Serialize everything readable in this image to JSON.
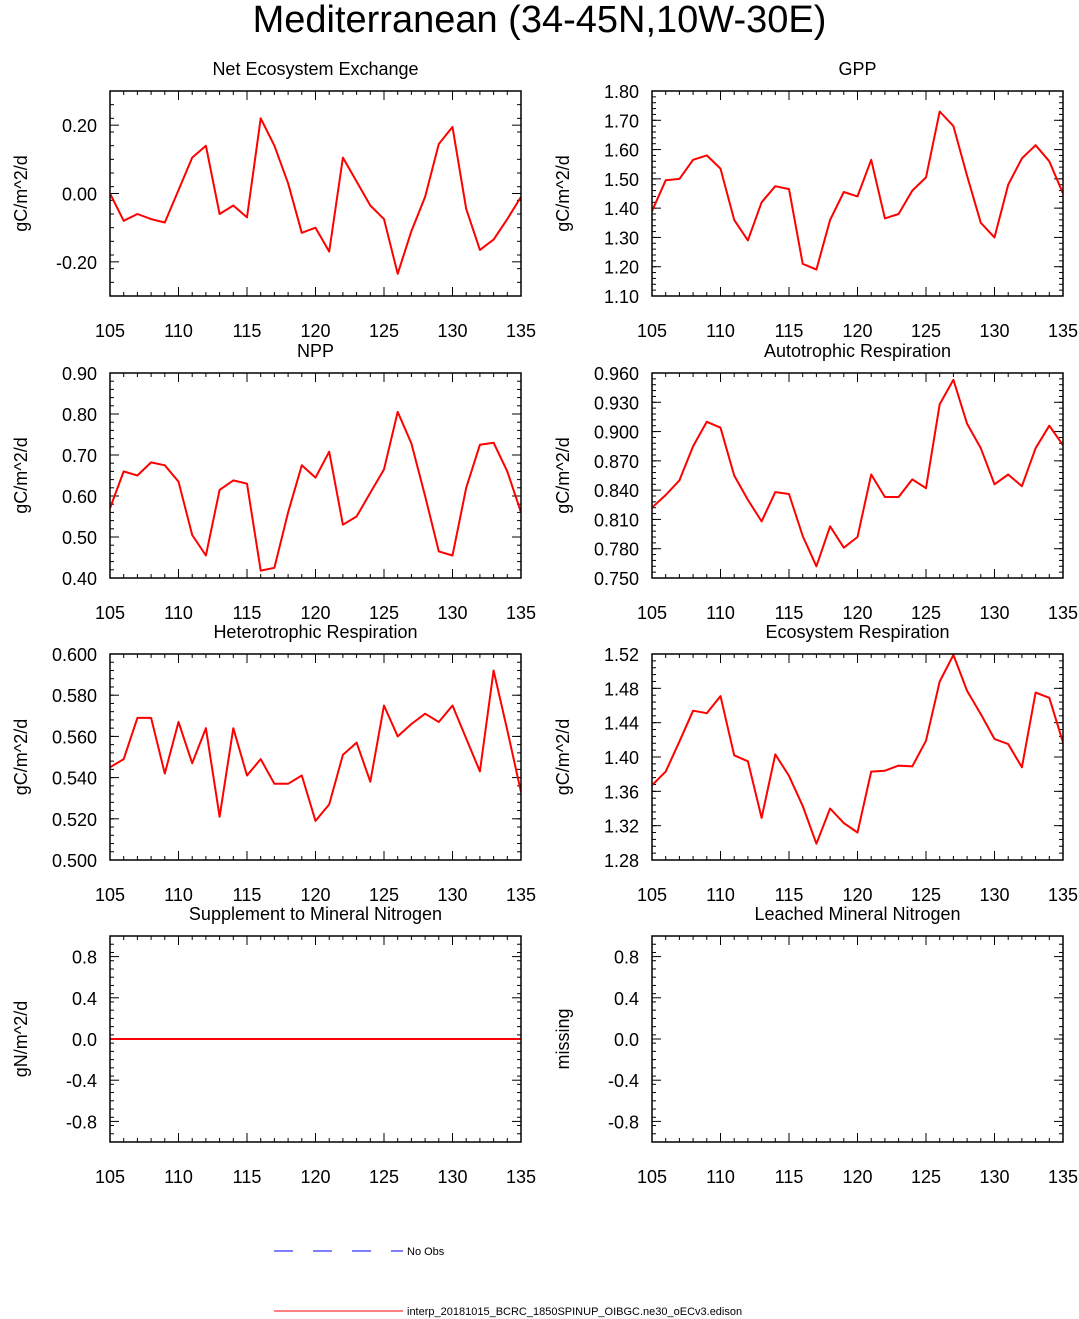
{
  "page_title": "Mediterranean (34-45N,10W-30E)",
  "series_color": "#ff0000",
  "obs_color": "#0000ff",
  "legend": {
    "obs_label": "No Obs",
    "model_label": "interp_20181015_BCRC_1850SPINUP_OIBGC.ne30_oECv3.edison"
  },
  "chart_data": [
    {
      "type": "line",
      "title": "Net Ecosystem Exchange",
      "ylabel": "gC/m^2/d",
      "xlim": [
        105,
        135
      ],
      "ylim": [
        -0.3,
        0.3
      ],
      "xticks": [
        105,
        110,
        115,
        120,
        125,
        130,
        135
      ],
      "yticks": [
        -0.2,
        0.0,
        0.2
      ],
      "ytick_labels": [
        "-0.20",
        "0.00",
        "0.20"
      ],
      "x": [
        105,
        106,
        107,
        108,
        109,
        110,
        111,
        112,
        113,
        114,
        115,
        116,
        117,
        118,
        119,
        120,
        121,
        122,
        123,
        124,
        125,
        126,
        127,
        128,
        129,
        130,
        131,
        132,
        133,
        134,
        135
      ],
      "series": [
        {
          "values": [
            0.0,
            -0.08,
            -0.06,
            -0.075,
            -0.085,
            0.01,
            0.105,
            0.14,
            -0.06,
            -0.035,
            -0.07,
            0.22,
            0.14,
            0.03,
            -0.115,
            -0.1,
            -0.17,
            0.105,
            0.035,
            -0.035,
            -0.075,
            -0.235,
            -0.11,
            -0.01,
            0.145,
            0.195,
            -0.045,
            -0.165,
            -0.135,
            -0.075,
            -0.01
          ]
        }
      ]
    },
    {
      "type": "line",
      "title": "GPP",
      "ylabel": "gC/m^2/d",
      "xlim": [
        105,
        135
      ],
      "ylim": [
        1.1,
        1.8
      ],
      "xticks": [
        105,
        110,
        115,
        120,
        125,
        130,
        135
      ],
      "yticks": [
        1.1,
        1.2,
        1.3,
        1.4,
        1.5,
        1.6,
        1.7,
        1.8
      ],
      "ytick_labels": [
        "1.10",
        "1.20",
        "1.30",
        "1.40",
        "1.50",
        "1.60",
        "1.70",
        "1.80"
      ],
      "x": [
        105,
        106,
        107,
        108,
        109,
        110,
        111,
        112,
        113,
        114,
        115,
        116,
        117,
        118,
        119,
        120,
        121,
        122,
        123,
        124,
        125,
        126,
        127,
        128,
        129,
        130,
        131,
        132,
        133,
        134,
        135
      ],
      "series": [
        {
          "values": [
            1.39,
            1.495,
            1.5,
            1.565,
            1.58,
            1.535,
            1.36,
            1.29,
            1.42,
            1.475,
            1.465,
            1.21,
            1.19,
            1.36,
            1.455,
            1.44,
            1.565,
            1.365,
            1.38,
            1.46,
            1.505,
            1.73,
            1.68,
            1.51,
            1.35,
            1.3,
            1.48,
            1.57,
            1.615,
            1.56,
            1.45
          ]
        }
      ]
    },
    {
      "type": "line",
      "title": "NPP",
      "ylabel": "gC/m^2/d",
      "xlim": [
        105,
        135
      ],
      "ylim": [
        0.4,
        0.9
      ],
      "xticks": [
        105,
        110,
        115,
        120,
        125,
        130,
        135
      ],
      "yticks": [
        0.4,
        0.5,
        0.6,
        0.7,
        0.8,
        0.9
      ],
      "ytick_labels": [
        "0.40",
        "0.50",
        "0.60",
        "0.70",
        "0.80",
        "0.90"
      ],
      "x": [
        105,
        106,
        107,
        108,
        109,
        110,
        111,
        112,
        113,
        114,
        115,
        116,
        117,
        118,
        119,
        120,
        121,
        122,
        123,
        124,
        125,
        126,
        127,
        128,
        129,
        130,
        131,
        132,
        133,
        134,
        135
      ],
      "series": [
        {
          "values": [
            0.57,
            0.66,
            0.65,
            0.682,
            0.675,
            0.635,
            0.505,
            0.455,
            0.615,
            0.638,
            0.63,
            0.418,
            0.425,
            0.56,
            0.675,
            0.645,
            0.708,
            0.53,
            0.55,
            0.608,
            0.665,
            0.805,
            0.728,
            0.6,
            0.465,
            0.455,
            0.62,
            0.725,
            0.73,
            0.66,
            0.56
          ]
        }
      ]
    },
    {
      "type": "line",
      "title": "Autotrophic Respiration",
      "ylabel": "gC/m^2/d",
      "xlim": [
        105,
        135
      ],
      "ylim": [
        0.75,
        0.96
      ],
      "xticks": [
        105,
        110,
        115,
        120,
        125,
        130,
        135
      ],
      "yticks": [
        0.75,
        0.78,
        0.81,
        0.84,
        0.87,
        0.9,
        0.93,
        0.96
      ],
      "ytick_labels": [
        "0.750",
        "0.780",
        "0.810",
        "0.840",
        "0.870",
        "0.900",
        "0.930",
        "0.960"
      ],
      "x": [
        105,
        106,
        107,
        108,
        109,
        110,
        111,
        112,
        113,
        114,
        115,
        116,
        117,
        118,
        119,
        120,
        121,
        122,
        123,
        124,
        125,
        126,
        127,
        128,
        129,
        130,
        131,
        132,
        133,
        134,
        135
      ],
      "series": [
        {
          "values": [
            0.822,
            0.835,
            0.85,
            0.885,
            0.91,
            0.904,
            0.855,
            0.83,
            0.808,
            0.838,
            0.836,
            0.793,
            0.762,
            0.803,
            0.781,
            0.792,
            0.856,
            0.833,
            0.833,
            0.851,
            0.842,
            0.928,
            0.953,
            0.908,
            0.883,
            0.846,
            0.856,
            0.844,
            0.883,
            0.906,
            0.886
          ]
        }
      ]
    },
    {
      "type": "line",
      "title": "Heterotrophic Respiration",
      "ylabel": "gC/m^2/d",
      "xlim": [
        105,
        135
      ],
      "ylim": [
        0.5,
        0.6
      ],
      "xticks": [
        105,
        110,
        115,
        120,
        125,
        130,
        135
      ],
      "yticks": [
        0.5,
        0.52,
        0.54,
        0.56,
        0.58,
        0.6
      ],
      "ytick_labels": [
        "0.500",
        "0.520",
        "0.540",
        "0.560",
        "0.580",
        "0.600"
      ],
      "x": [
        105,
        106,
        107,
        108,
        109,
        110,
        111,
        112,
        113,
        114,
        115,
        116,
        117,
        118,
        119,
        120,
        121,
        122,
        123,
        124,
        125,
        126,
        127,
        128,
        129,
        130,
        131,
        132,
        133,
        134,
        135
      ],
      "series": [
        {
          "values": [
            0.545,
            0.549,
            0.569,
            0.569,
            0.542,
            0.567,
            0.547,
            0.564,
            0.521,
            0.564,
            0.541,
            0.549,
            0.537,
            0.537,
            0.541,
            0.519,
            0.527,
            0.551,
            0.557,
            0.538,
            0.575,
            0.56,
            0.566,
            0.571,
            0.567,
            0.575,
            0.559,
            0.543,
            0.592,
            0.563,
            0.533
          ]
        }
      ]
    },
    {
      "type": "line",
      "title": "Ecosystem Respiration",
      "ylabel": "gC/m^2/d",
      "xlim": [
        105,
        135
      ],
      "ylim": [
        1.28,
        1.52
      ],
      "xticks": [
        105,
        110,
        115,
        120,
        125,
        130,
        135
      ],
      "yticks": [
        1.28,
        1.32,
        1.36,
        1.4,
        1.44,
        1.48,
        1.52
      ],
      "ytick_labels": [
        "1.28",
        "1.32",
        "1.36",
        "1.40",
        "1.44",
        "1.48",
        "1.52"
      ],
      "x": [
        105,
        106,
        107,
        108,
        109,
        110,
        111,
        112,
        113,
        114,
        115,
        116,
        117,
        118,
        119,
        120,
        121,
        122,
        123,
        124,
        125,
        126,
        127,
        128,
        129,
        130,
        131,
        132,
        133,
        134,
        135
      ],
      "series": [
        {
          "values": [
            1.367,
            1.383,
            1.418,
            1.454,
            1.451,
            1.471,
            1.402,
            1.395,
            1.329,
            1.403,
            1.378,
            1.343,
            1.299,
            1.34,
            1.323,
            1.312,
            1.383,
            1.384,
            1.39,
            1.389,
            1.419,
            1.488,
            1.519,
            1.477,
            1.45,
            1.421,
            1.415,
            1.388,
            1.475,
            1.469,
            1.417
          ]
        }
      ]
    },
    {
      "type": "line",
      "title": "Supplement to Mineral Nitrogen",
      "ylabel": "gN/m^2/d",
      "xlim": [
        105,
        135
      ],
      "ylim": [
        -1.0,
        1.0
      ],
      "xticks": [
        105,
        110,
        115,
        120,
        125,
        130,
        135
      ],
      "yticks": [
        -0.8,
        -0.4,
        0.0,
        0.4,
        0.8
      ],
      "ytick_labels": [
        "-0.8",
        "-0.4",
        "0.0",
        "0.4",
        "0.8"
      ],
      "x": [
        105,
        135
      ],
      "series": [
        {
          "values": [
            0.0,
            0.0
          ]
        }
      ]
    },
    {
      "type": "line",
      "title": "Leached Mineral Nitrogen",
      "ylabel": "missing",
      "xlim": [
        105,
        135
      ],
      "ylim": [
        -1.0,
        1.0
      ],
      "xticks": [
        105,
        110,
        115,
        120,
        125,
        130,
        135
      ],
      "yticks": [
        -0.8,
        -0.4,
        0.0,
        0.4,
        0.8
      ],
      "ytick_labels": [
        "-0.8",
        "-0.4",
        "0.0",
        "0.4",
        "0.8"
      ],
      "x": [],
      "series": []
    }
  ]
}
